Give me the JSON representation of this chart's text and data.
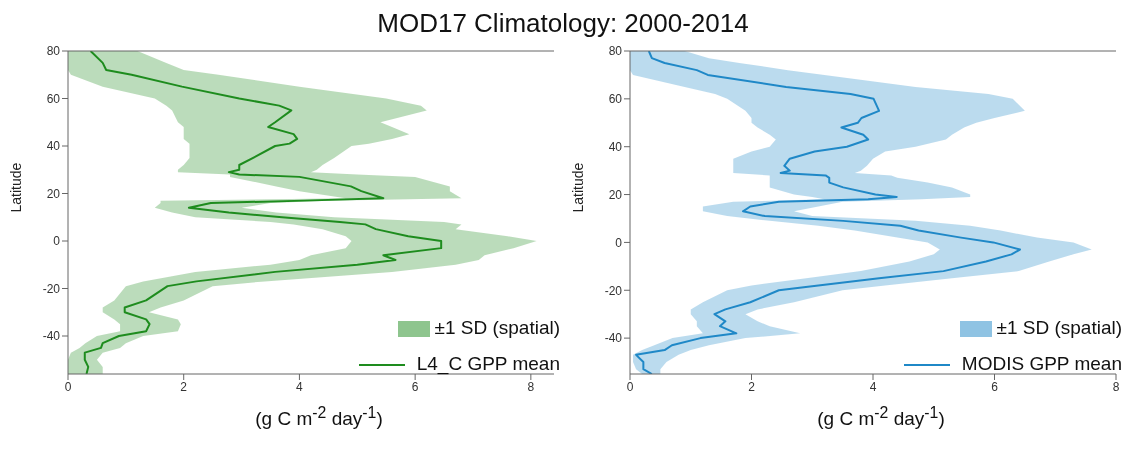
{
  "chart_data": [
    {
      "type": "line",
      "title": "MOD17 Climatology: 2000-2014",
      "orientation": "horizontal",
      "xlabel": "(g C m$^{-2}$ day$^{-1}$)",
      "ylabel": "Latitude",
      "xlim": [
        0,
        8.4
      ],
      "xticks": [
        0,
        2,
        4,
        6,
        8
      ],
      "ylim": [
        -56,
        80
      ],
      "yticks": [
        -40,
        -20,
        0,
        20,
        40,
        60,
        80
      ],
      "grid": false,
      "legend": "bottom right",
      "annotations": [
        "±1 SD (spatial)"
      ],
      "x": [
        80,
        75,
        72,
        70,
        65,
        60,
        57,
        55,
        50,
        48,
        45,
        43,
        41,
        40,
        35,
        32,
        30,
        29,
        28,
        27,
        23,
        21,
        18,
        17,
        16,
        14,
        12,
        10,
        8,
        7,
        5,
        2,
        0,
        -3,
        -6,
        -8,
        -10,
        -13,
        -17,
        -19,
        -25,
        -28,
        -30,
        -33,
        -35,
        -38,
        -40,
        -43,
        -45,
        -47,
        -50,
        -53,
        -56
      ],
      "series": [
        {
          "name": "L4_C GPP mean",
          "color": "#1e8c1e",
          "values": [
            0.39,
            0.6,
            0.66,
            1.1,
            1.97,
            2.96,
            3.65,
            3.86,
            3.58,
            3.46,
            3.9,
            3.96,
            3.83,
            3.58,
            3.2,
            2.96,
            2.96,
            2.78,
            2.96,
            4.0,
            4.89,
            5.07,
            5.45,
            4.08,
            2.47,
            2.09,
            2.78,
            3.7,
            4.7,
            5.14,
            5.32,
            5.88,
            6.45,
            6.45,
            5.45,
            5.66,
            5.0,
            3.58,
            2.22,
            1.72,
            1.35,
            0.98,
            0.98,
            1.35,
            1.41,
            1.35,
            0.88,
            0.6,
            0.57,
            0.29,
            0.29,
            0.35,
            0.32
          ],
          "lower": [
            0,
            0,
            0,
            0.05,
            0.6,
            1.5,
            1.7,
            1.8,
            1.9,
            2.0,
            2.0,
            2.0,
            2.1,
            2.1,
            2.1,
            2.0,
            1.9,
            1.9,
            2.8,
            2.8,
            3.6,
            4.0,
            4.8,
            1.6,
            1.6,
            1.5,
            1.8,
            2.2,
            3.5,
            3.9,
            4.4,
            4.8,
            4.9,
            4.8,
            4.2,
            4.0,
            3.5,
            2.2,
            1.3,
            1.0,
            0.8,
            0.6,
            0.6,
            0.8,
            0.9,
            0.9,
            0.5,
            0.3,
            0.2,
            0.05,
            0,
            0,
            0
          ],
          "upper": [
            1.2,
            1.7,
            2.0,
            2.6,
            4.0,
            5.5,
            6.1,
            6.2,
            5.4,
            5.6,
            5.9,
            5.6,
            5.2,
            4.9,
            4.6,
            4.4,
            4.3,
            4.2,
            5.0,
            6.0,
            6.6,
            6.6,
            6.8,
            4.5,
            3.5,
            3.0,
            3.6,
            4.6,
            6.5,
            6.8,
            6.7,
            7.6,
            8.1,
            7.7,
            7.2,
            7.1,
            6.7,
            5.6,
            3.4,
            2.5,
            2.0,
            1.6,
            1.4,
            1.9,
            1.95,
            1.9,
            1.3,
            1.0,
            0.9,
            0.6,
            0.5,
            0.6,
            0.6
          ]
        }
      ]
    },
    {
      "type": "line",
      "orientation": "horizontal",
      "xlabel": "(g C m$^{-2}$ day$^{-1}$)",
      "ylabel": "Latitude",
      "xlim": [
        0,
        8
      ],
      "xticks": [
        0,
        2,
        4,
        6,
        8
      ],
      "ylim": [
        -55,
        80
      ],
      "yticks": [
        -40,
        -20,
        0,
        20,
        40,
        60,
        80
      ],
      "grid": false,
      "legend": "bottom right",
      "annotations": [
        "±1 SD (spatial)"
      ],
      "x": [
        80,
        77,
        75,
        72,
        70,
        65,
        62,
        60,
        55,
        52,
        50,
        48,
        45,
        43,
        40,
        38,
        35,
        32,
        30,
        29,
        28,
        27,
        25,
        23,
        20,
        19,
        18,
        17,
        15,
        13,
        11,
        9,
        7,
        5,
        2,
        0,
        -3,
        -5,
        -8,
        -12,
        -15,
        -18,
        -20,
        -25,
        -28,
        -30,
        -33,
        -35,
        -38,
        -40,
        -43,
        -45,
        -47,
        -50,
        -53,
        -55
      ],
      "series": [
        {
          "name": "MODIS GPP mean",
          "color": "#1f88c7",
          "values": [
            0.31,
            0.36,
            0.57,
            1.1,
            1.28,
            2.57,
            3.63,
            4.01,
            4.1,
            3.81,
            3.75,
            3.48,
            3.84,
            3.92,
            3.57,
            3.04,
            2.63,
            2.54,
            2.63,
            2.48,
            3.22,
            3.28,
            3.28,
            3.51,
            4.04,
            4.39,
            3.92,
            2.45,
            1.98,
            1.86,
            2.22,
            3.51,
            4.45,
            4.75,
            5.45,
            5.98,
            6.42,
            6.28,
            5.86,
            5.16,
            4.1,
            3.1,
            2.45,
            1.98,
            1.57,
            1.39,
            1.57,
            1.48,
            1.75,
            1.16,
            0.69,
            0.57,
            0.1,
            0.22,
            0.22,
            0.36
          ],
          "lower": [
            0,
            0,
            0,
            0,
            0.05,
            0.9,
            1.4,
            1.6,
            1.9,
            2.0,
            2.0,
            2.1,
            2.3,
            2.4,
            2.3,
            2.0,
            1.7,
            1.7,
            1.7,
            1.7,
            2.3,
            2.3,
            2.3,
            2.3,
            2.7,
            3.0,
            3.2,
            1.7,
            1.2,
            1.2,
            1.6,
            2.3,
            3.1,
            3.7,
            4.4,
            4.9,
            5.1,
            5.0,
            4.6,
            3.8,
            2.9,
            2.0,
            1.6,
            1.2,
            1.0,
            1.0,
            1.1,
            1.1,
            1.2,
            0.7,
            0.4,
            0.2,
            0.05,
            0.05,
            0.1,
            0.2
          ],
          "upper": [
            0.9,
            1.3,
            1.8,
            2.6,
            3.2,
            4.7,
            5.9,
            6.3,
            6.5,
            6.0,
            5.7,
            5.5,
            5.3,
            5.2,
            4.7,
            4.2,
            4.0,
            3.9,
            3.8,
            3.7,
            4.3,
            4.4,
            4.9,
            5.3,
            5.6,
            5.6,
            4.8,
            3.5,
            3.1,
            2.7,
            3.0,
            4.7,
            5.6,
            6.1,
            6.7,
            7.3,
            7.6,
            7.3,
            6.9,
            6.4,
            5.3,
            4.2,
            3.5,
            2.7,
            2.1,
            1.9,
            2.1,
            2.3,
            2.8,
            1.9,
            1.3,
            1.0,
            0.8,
            0.6,
            0.5,
            0.5
          ]
        }
      ]
    }
  ]
}
